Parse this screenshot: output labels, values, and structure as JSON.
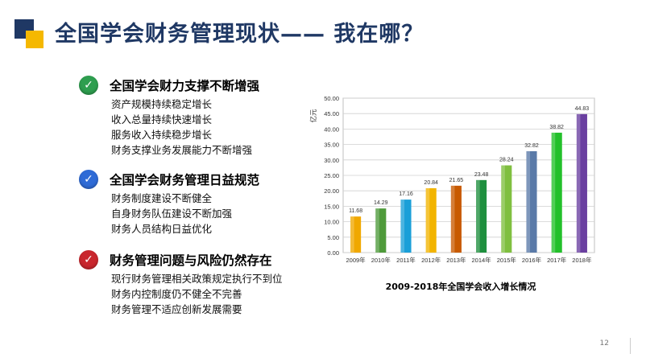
{
  "title": "全国学会财务管理现状—— 我在哪？",
  "sections": [
    {
      "title": "全国学会财力支撑不断增强",
      "check_color": "#2e9e4f",
      "items": [
        "资产规模持续稳定增长",
        "收入总量持续快速增长",
        "服务收入持续稳步增长",
        "财务支撑业务发展能力不断增强"
      ]
    },
    {
      "title": "全国学会财务管理日益规范",
      "check_color": "#2f6bd6",
      "items": [
        "财务制度建设不断健全",
        "自身财务队伍建设不断加强",
        "财务人员结构日益优化"
      ]
    },
    {
      "title": "财务管理问题与风险仍然存在",
      "check_color": "#c9262d",
      "items": [
        "现行财务管理相关政策规定执行不到位",
        "财务内控制度仍不健全不完善",
        "财务管理不适应创新发展需要"
      ]
    }
  ],
  "check_icon": "check-icon",
  "chart_caption": "2009-2018年全国学会收入增长情况",
  "page_number": "12",
  "chart_data": {
    "type": "bar",
    "ylabel": "亿元",
    "ylim": [
      0,
      50
    ],
    "yticks": [
      "0.00",
      "5.00",
      "10.00",
      "15.00",
      "20.00",
      "25.00",
      "30.00",
      "35.00",
      "40.00",
      "45.00",
      "50.00"
    ],
    "categories": [
      "2009年",
      "2010年",
      "2011年",
      "2012年",
      "2013年",
      "2014年",
      "2015年",
      "2016年",
      "2017年",
      "2018年"
    ],
    "values": [
      11.68,
      14.29,
      17.16,
      20.84,
      21.65,
      23.48,
      28.24,
      32.82,
      38.82,
      44.83
    ],
    "labels": [
      "11.68",
      "14.29",
      "17.16",
      "20.84",
      "21.65",
      "23.48",
      "28.24",
      "32.82",
      "38.82",
      "44.83"
    ],
    "colors": [
      "#f0a800",
      "#4e9a3a",
      "#1a9fd8",
      "#f2b400",
      "#c85a00",
      "#1e8f3e",
      "#7fbf3f",
      "#5a7aa8",
      "#22c02a",
      "#6a3fa0"
    ],
    "grid": true
  }
}
